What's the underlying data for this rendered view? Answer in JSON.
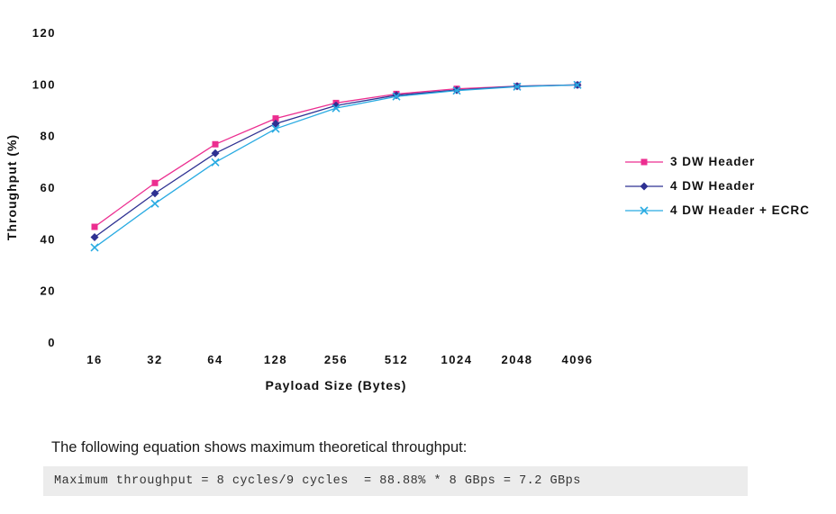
{
  "chart_data": {
    "type": "line",
    "title": "",
    "categories": [
      "16",
      "32",
      "64",
      "128",
      "256",
      "512",
      "1024",
      "2048",
      "4096"
    ],
    "series": [
      {
        "name": "3 DW Header",
        "color": "#ec2e90",
        "marker": "square",
        "values": [
          45,
          62,
          77,
          87,
          93,
          96.5,
          98.5,
          99.5,
          100
        ]
      },
      {
        "name": "4 DW Header",
        "color": "#2e3192",
        "marker": "diamond",
        "values": [
          41,
          58,
          73.5,
          85,
          92,
          96,
          98,
          99.5,
          100
        ]
      },
      {
        "name": "4 DW Header + ECRC",
        "color": "#29abe2",
        "marker": "x",
        "values": [
          37,
          54,
          70,
          83,
          91,
          95.5,
          97.8,
          99.3,
          100
        ]
      }
    ],
    "xlabel": "Payload Size (Bytes)",
    "ylabel": "Throughput (%)",
    "ylim": [
      0,
      120
    ],
    "yticks": [
      0,
      20,
      40,
      60,
      80,
      100,
      120
    ],
    "grid": false,
    "legend_position": "right"
  },
  "caption": {
    "text": "The following equation shows maximum theoretical throughput:"
  },
  "equation": {
    "text": "Maximum throughput = 8 cycles/9 cycles  = 88.88% * 8 GBps = 7.2 GBps"
  }
}
